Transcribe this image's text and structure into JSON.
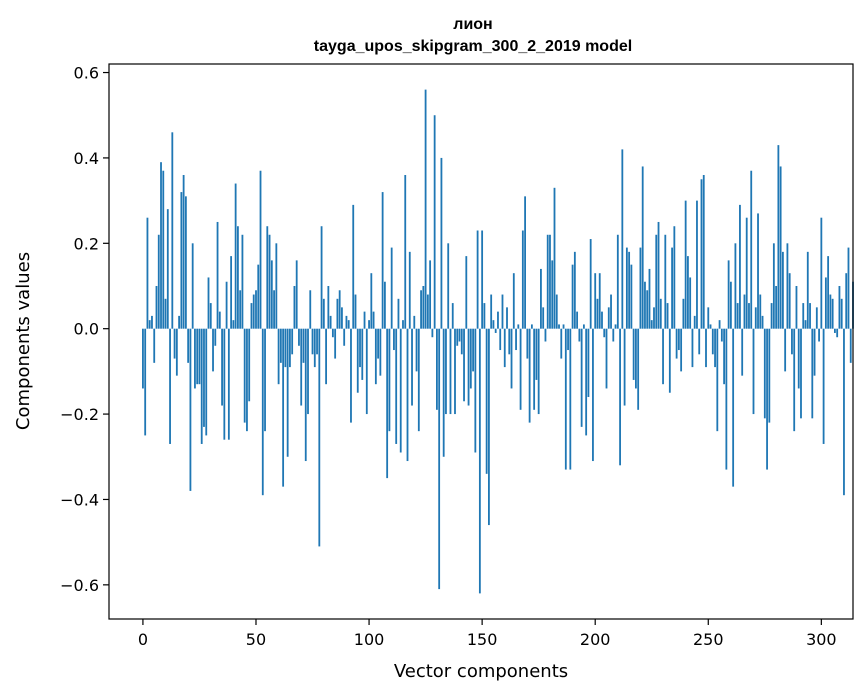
{
  "chart_data": {
    "type": "bar",
    "title": "лион",
    "subtitle": "tayga_upos_skipgram_300_2_2019 model",
    "xlabel": "Vector components",
    "ylabel": "Components values",
    "xlim": [
      -15,
      314
    ],
    "ylim": [
      -0.68,
      0.62
    ],
    "xticks": [
      0,
      50,
      100,
      150,
      200,
      250,
      300
    ],
    "yticks": [
      -0.6,
      -0.4,
      -0.2,
      0.0,
      0.2,
      0.4,
      0.6
    ],
    "xtick_labels": [
      "0",
      "50",
      "100",
      "150",
      "200",
      "250",
      "300"
    ],
    "ytick_labels": [
      "−0.6",
      "−0.4",
      "−0.2",
      "0.0",
      "0.2",
      "0.4",
      "0.6"
    ],
    "bar_color": "#1f77b4",
    "grid": false,
    "values": [
      -0.14,
      -0.25,
      0.26,
      0.02,
      0.03,
      -0.08,
      0.1,
      0.22,
      0.39,
      0.37,
      0.07,
      0.28,
      -0.27,
      0.46,
      -0.07,
      -0.11,
      0.03,
      0.32,
      0.36,
      0.31,
      -0.08,
      -0.38,
      0.2,
      -0.14,
      -0.13,
      -0.13,
      -0.27,
      -0.23,
      -0.25,
      0.12,
      0.06,
      -0.1,
      -0.04,
      0.25,
      0.04,
      -0.18,
      -0.26,
      0.11,
      -0.26,
      0.17,
      0.02,
      0.34,
      0.24,
      0.09,
      0.22,
      -0.22,
      -0.24,
      -0.17,
      0.06,
      0.08,
      0.09,
      0.15,
      0.37,
      -0.39,
      -0.24,
      0.24,
      0.22,
      0.16,
      0.09,
      0.2,
      -0.13,
      -0.08,
      -0.37,
      -0.09,
      -0.3,
      -0.09,
      -0.06,
      0.1,
      0.16,
      -0.04,
      -0.18,
      -0.08,
      -0.31,
      -0.2,
      0.09,
      -0.06,
      -0.09,
      -0.06,
      -0.51,
      0.24,
      0.07,
      -0.13,
      0.1,
      0.03,
      -0.02,
      -0.07,
      0.07,
      0.09,
      0.05,
      -0.04,
      0.03,
      0.02,
      -0.22,
      0.29,
      0.08,
      -0.15,
      -0.09,
      -0.12,
      0.04,
      -0.2,
      0.02,
      0.13,
      0.04,
      -0.13,
      -0.07,
      -0.11,
      0.32,
      0.11,
      -0.35,
      -0.24,
      0.19,
      -0.05,
      -0.27,
      0.07,
      -0.29,
      0.02,
      0.36,
      -0.31,
      0.18,
      -0.18,
      0.03,
      -0.1,
      -0.24,
      0.09,
      0.1,
      0.56,
      0.08,
      0.16,
      -0.02,
      0.5,
      -0.19,
      -0.61,
      0.4,
      -0.3,
      -0.2,
      0.2,
      -0.2,
      0.06,
      -0.2,
      -0.04,
      -0.03,
      -0.06,
      -0.17,
      0.17,
      -0.18,
      -0.14,
      -0.1,
      -0.29,
      0.23,
      -0.62,
      0.23,
      0.06,
      -0.34,
      -0.46,
      0.08,
      0.02,
      -0.01,
      0.04,
      -0.05,
      0.08,
      -0.09,
      0.05,
      -0.06,
      -0.14,
      0.13,
      -0.05,
      0.01,
      -0.19,
      0.23,
      0.31,
      -0.07,
      -0.22,
      0.01,
      -0.19,
      -0.12,
      -0.2,
      0.14,
      0.05,
      -0.03,
      0.22,
      0.22,
      0.16,
      0.33,
      0.08,
      0.01,
      -0.07,
      0.01,
      -0.33,
      -0.05,
      -0.33,
      0.15,
      0.18,
      0.04,
      -0.03,
      -0.23,
      0.01,
      -0.25,
      -0.16,
      0.21,
      -0.31,
      0.13,
      0.07,
      0.13,
      0.04,
      -0.02,
      -0.14,
      0.05,
      0.08,
      -0.03,
      0.01,
      0.22,
      -0.32,
      0.42,
      -0.18,
      0.19,
      0.18,
      0.15,
      -0.12,
      -0.14,
      -0.19,
      0.19,
      0.38,
      0.11,
      0.09,
      0.14,
      0.02,
      0.05,
      0.22,
      0.25,
      0.07,
      -0.13,
      0.22,
      0.06,
      -0.15,
      0.19,
      0.24,
      -0.07,
      -0.05,
      -0.1,
      0.07,
      0.3,
      0.17,
      0.12,
      -0.09,
      0.03,
      0.3,
      -0.06,
      0.35,
      0.36,
      -0.09,
      0.05,
      0.01,
      -0.06,
      -0.09,
      -0.24,
      0.02,
      -0.03,
      -0.13,
      -0.33,
      0.16,
      0.11,
      -0.37,
      0.2,
      0.06,
      0.29,
      -0.11,
      0.08,
      0.26,
      0.06,
      0.37,
      -0.2,
      0.05,
      0.27,
      0.08,
      0.03,
      -0.21,
      -0.33,
      -0.22,
      0.06,
      0.2,
      0.1,
      0.43,
      0.38,
      0.18,
      -0.1,
      0.2,
      0.13,
      -0.06,
      -0.24,
      0.1,
      -0.14,
      -0.21,
      0.06,
      0.02,
      0.18,
      0.06,
      -0.21,
      -0.11,
      0.05,
      -0.03,
      0.26,
      -0.27,
      0.12,
      0.17,
      0.08,
      0.07,
      -0.01,
      -0.02,
      0.1,
      0.07,
      -0.39,
      0.13,
      0.19,
      -0.08,
      0.11
    ]
  }
}
